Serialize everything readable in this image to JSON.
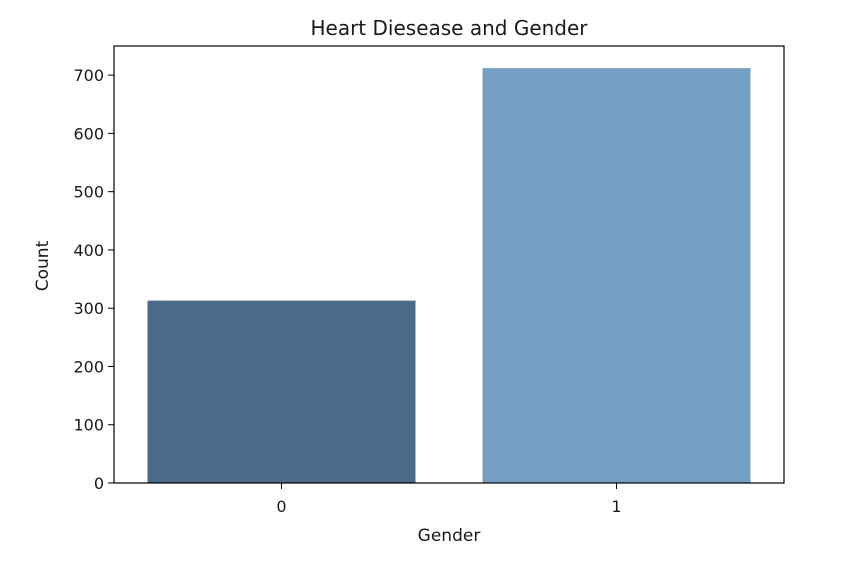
{
  "chart_data": {
    "type": "bar",
    "title": "Heart Diesease and Gender",
    "xlabel": "Gender",
    "ylabel": "Count",
    "categories": [
      "0",
      "1"
    ],
    "values": [
      313,
      712
    ],
    "bar_colors": [
      "#4a6a8a",
      "#759fc2"
    ],
    "ylim": [
      0,
      750
    ],
    "yticks": [
      0,
      100,
      200,
      300,
      400,
      500,
      600,
      700
    ],
    "ytick_labels": [
      "0",
      "100",
      "200",
      "300",
      "400",
      "500",
      "600",
      "700"
    ],
    "grid": false,
    "legend": "none"
  }
}
